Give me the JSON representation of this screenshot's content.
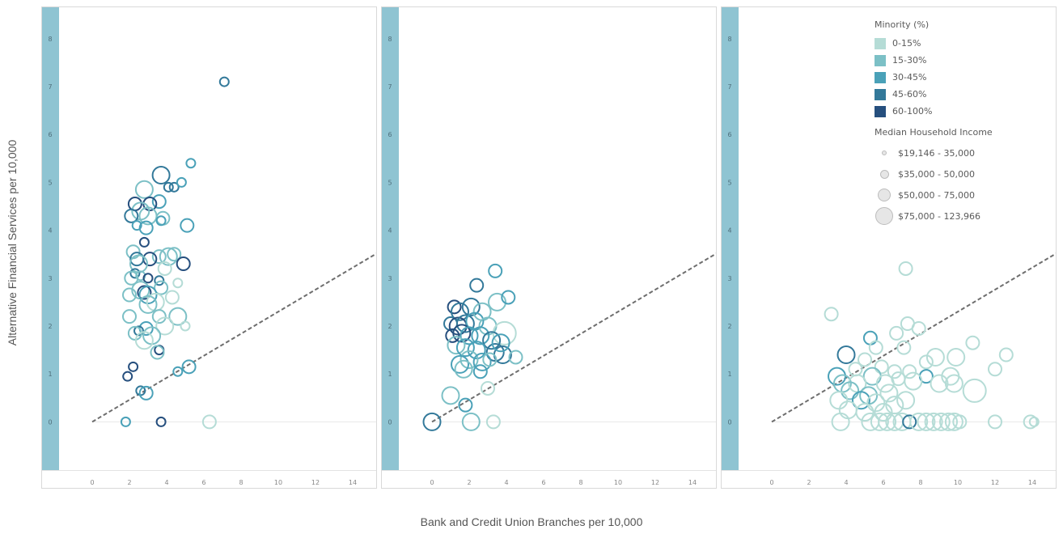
{
  "y_axis_title": "Alternative Financial Services per 10,000",
  "x_axis_title": "Bank and Credit Union Branches per 10,000",
  "colors": {
    "0-15%": "#b5dcd6",
    "15-30%": "#7cc0c6",
    "30-45%": "#4aa1b8",
    "45-60%": "#33799a",
    "60-100%": "#264f7e",
    "yband": "#8fc4d2",
    "refline": "#6e6e6e"
  },
  "legend": {
    "color_title": "Minority (%)",
    "color_items": [
      "0-15%",
      "15-30%",
      "30-45%",
      "45-60%",
      "60-100%"
    ],
    "size_title": "Median Household Income",
    "size_items": [
      "$19,146 - 35,000",
      "$35,000 - 50,000",
      "$50,000 - 75,000",
      "$75,000 - 123,966"
    ]
  },
  "chart_data": [
    {
      "type": "scatter",
      "xlim": [
        -1,
        16
      ],
      "ylim": [
        -0.5,
        9.1
      ],
      "x_ticks": [
        0,
        2,
        4,
        6,
        8,
        10,
        12,
        14,
        16
      ],
      "y_ticks": [
        0,
        1,
        2,
        3,
        4,
        5,
        6,
        7,
        8,
        9
      ],
      "reference_line": "y = 0.23x",
      "points": [
        [
          7.1,
          7.1,
          3,
          1
        ],
        [
          5.3,
          5.4,
          2,
          1
        ],
        [
          3.7,
          5.15,
          3,
          3
        ],
        [
          4.1,
          4.9,
          3,
          1
        ],
        [
          4.4,
          4.9,
          3,
          1
        ],
        [
          4.8,
          5.0,
          2,
          1
        ],
        [
          2.8,
          4.85,
          1,
          3
        ],
        [
          3.6,
          4.6,
          2,
          2
        ],
        [
          2.3,
          4.55,
          4,
          2
        ],
        [
          3.1,
          4.55,
          4,
          2
        ],
        [
          2.6,
          4.4,
          1,
          3
        ],
        [
          2.1,
          4.3,
          3,
          2
        ],
        [
          3.0,
          4.3,
          1,
          3
        ],
        [
          3.8,
          4.25,
          1,
          2
        ],
        [
          3.7,
          4.2,
          2,
          1
        ],
        [
          5.1,
          4.1,
          2,
          2
        ],
        [
          2.4,
          4.1,
          2,
          1
        ],
        [
          2.9,
          4.05,
          2,
          2
        ],
        [
          2.8,
          3.75,
          4,
          1
        ],
        [
          2.2,
          3.55,
          1,
          2
        ],
        [
          3.6,
          3.45,
          1,
          2
        ],
        [
          4.1,
          3.45,
          1,
          3
        ],
        [
          4.4,
          3.5,
          1,
          2
        ],
        [
          3.1,
          3.4,
          4,
          2
        ],
        [
          2.4,
          3.4,
          3,
          2
        ],
        [
          4.9,
          3.3,
          4,
          2
        ],
        [
          2.5,
          3.3,
          1,
          3
        ],
        [
          3.9,
          3.2,
          0,
          2
        ],
        [
          2.3,
          3.1,
          3,
          1
        ],
        [
          2.6,
          3.05,
          1,
          1
        ],
        [
          3.0,
          3.0,
          4,
          1
        ],
        [
          2.1,
          3.0,
          1,
          2
        ],
        [
          3.6,
          2.95,
          3,
          1
        ],
        [
          4.6,
          2.9,
          0,
          1
        ],
        [
          3.7,
          2.8,
          1,
          2
        ],
        [
          2.6,
          2.75,
          1,
          3
        ],
        [
          2.8,
          2.7,
          4,
          2
        ],
        [
          3.0,
          2.65,
          2,
          3
        ],
        [
          2.0,
          2.65,
          1,
          2
        ],
        [
          4.3,
          2.6,
          0,
          2
        ],
        [
          3.4,
          2.5,
          0,
          3
        ],
        [
          3.0,
          2.45,
          1,
          3
        ],
        [
          4.6,
          2.2,
          1,
          3
        ],
        [
          2.0,
          2.2,
          1,
          2
        ],
        [
          3.6,
          2.2,
          1,
          2
        ],
        [
          3.9,
          2.0,
          0,
          3
        ],
        [
          5.0,
          2.0,
          0,
          1
        ],
        [
          2.9,
          1.95,
          2,
          2
        ],
        [
          2.5,
          1.9,
          3,
          1
        ],
        [
          2.3,
          1.85,
          1,
          2
        ],
        [
          3.2,
          1.8,
          1,
          3
        ],
        [
          2.8,
          1.7,
          0,
          3
        ],
        [
          3.6,
          1.5,
          4,
          1
        ],
        [
          3.5,
          1.45,
          1,
          2
        ],
        [
          5.2,
          1.15,
          2,
          2
        ],
        [
          4.6,
          1.05,
          2,
          1
        ],
        [
          2.2,
          1.15,
          4,
          1
        ],
        [
          1.9,
          0.95,
          4,
          1
        ],
        [
          2.6,
          0.65,
          3,
          1
        ],
        [
          2.9,
          0.6,
          2,
          2
        ],
        [
          1.8,
          0.0,
          2,
          1
        ],
        [
          3.7,
          0.0,
          4,
          1
        ],
        [
          6.3,
          0.0,
          0,
          2
        ]
      ]
    },
    {
      "type": "scatter",
      "xlim": [
        -1,
        16
      ],
      "ylim": [
        -0.5,
        9.1
      ],
      "x_ticks": [
        0,
        2,
        4,
        6,
        8,
        10,
        12,
        14,
        16
      ],
      "y_ticks": [
        0,
        1,
        2,
        3,
        4,
        5,
        6,
        7,
        8,
        9
      ],
      "reference_line": "y = 0.23x",
      "points": [
        [
          3.4,
          3.15,
          2,
          2
        ],
        [
          3.5,
          2.5,
          1,
          3
        ],
        [
          4.1,
          2.6,
          2,
          2
        ],
        [
          2.4,
          2.85,
          3,
          2
        ],
        [
          1.2,
          2.4,
          4,
          2
        ],
        [
          1.5,
          2.3,
          3,
          3
        ],
        [
          2.1,
          2.4,
          3,
          3
        ],
        [
          2.7,
          2.3,
          1,
          3
        ],
        [
          1.0,
          2.05,
          3,
          2
        ],
        [
          1.4,
          2.0,
          4,
          3
        ],
        [
          1.8,
          2.05,
          3,
          3
        ],
        [
          2.3,
          2.1,
          2,
          3
        ],
        [
          3.0,
          2.0,
          1,
          3
        ],
        [
          3.9,
          1.85,
          0,
          4
        ],
        [
          1.1,
          1.8,
          4,
          2
        ],
        [
          1.6,
          1.85,
          4,
          3
        ],
        [
          2.0,
          1.8,
          2,
          3
        ],
        [
          2.6,
          1.8,
          2,
          3
        ],
        [
          3.2,
          1.7,
          3,
          3
        ],
        [
          1.3,
          1.6,
          1,
          3
        ],
        [
          1.8,
          1.55,
          2,
          3
        ],
        [
          2.4,
          1.5,
          2,
          3
        ],
        [
          3.4,
          1.45,
          3,
          3
        ],
        [
          3.8,
          1.4,
          3,
          3
        ],
        [
          4.5,
          1.35,
          1,
          2
        ],
        [
          2.0,
          1.3,
          1,
          3
        ],
        [
          2.7,
          1.25,
          2,
          3
        ],
        [
          1.5,
          1.2,
          2,
          3
        ],
        [
          3.1,
          1.3,
          1,
          2
        ],
        [
          3.7,
          1.65,
          2,
          3
        ],
        [
          1.7,
          1.1,
          1,
          3
        ],
        [
          2.6,
          1.05,
          2,
          2
        ],
        [
          1.0,
          0.55,
          1,
          3
        ],
        [
          3.0,
          0.7,
          0,
          2
        ],
        [
          1.8,
          0.35,
          2,
          2
        ],
        [
          0.0,
          0.0,
          3,
          3
        ],
        [
          2.1,
          0.0,
          1,
          3
        ],
        [
          3.3,
          0.0,
          0,
          2
        ]
      ]
    },
    {
      "type": "scatter",
      "xlim": [
        -1,
        16
      ],
      "ylim": [
        -0.5,
        9.1
      ],
      "x_ticks": [
        0,
        2,
        4,
        6,
        8,
        10,
        12,
        14,
        16
      ],
      "y_ticks": [
        0,
        1,
        2,
        3,
        4,
        5,
        6,
        7,
        8,
        9
      ],
      "reference_line": "y = 0.23x",
      "points": [
        [
          7.2,
          3.2,
          0,
          2
        ],
        [
          3.2,
          2.25,
          0,
          2
        ],
        [
          7.3,
          2.05,
          0,
          2
        ],
        [
          7.9,
          1.95,
          0,
          2
        ],
        [
          6.7,
          1.85,
          0,
          2
        ],
        [
          5.3,
          1.75,
          2,
          2
        ],
        [
          10.8,
          1.65,
          0,
          2
        ],
        [
          5.6,
          1.55,
          0,
          2
        ],
        [
          7.1,
          1.55,
          0,
          2
        ],
        [
          12.6,
          1.4,
          0,
          2
        ],
        [
          4.0,
          1.4,
          3,
          3
        ],
        [
          5.0,
          1.3,
          0,
          2
        ],
        [
          8.8,
          1.35,
          0,
          3
        ],
        [
          9.9,
          1.35,
          0,
          3
        ],
        [
          8.3,
          1.25,
          0,
          2
        ],
        [
          5.9,
          1.15,
          0,
          2
        ],
        [
          4.5,
          1.1,
          0,
          2
        ],
        [
          6.6,
          1.05,
          0,
          2
        ],
        [
          7.4,
          1.05,
          0,
          2
        ],
        [
          12.0,
          1.1,
          0,
          2
        ],
        [
          3.5,
          0.95,
          2,
          3
        ],
        [
          5.4,
          0.95,
          1,
          3
        ],
        [
          6.8,
          0.9,
          0,
          2
        ],
        [
          8.3,
          0.95,
          2,
          2
        ],
        [
          9.6,
          0.95,
          0,
          3
        ],
        [
          3.8,
          0.8,
          1,
          3
        ],
        [
          4.6,
          0.8,
          0,
          3
        ],
        [
          6.1,
          0.8,
          0,
          3
        ],
        [
          7.6,
          0.85,
          0,
          3
        ],
        [
          9.0,
          0.8,
          0,
          3
        ],
        [
          9.8,
          0.8,
          0,
          3
        ],
        [
          4.2,
          0.65,
          1,
          3
        ],
        [
          5.2,
          0.55,
          1,
          3
        ],
        [
          6.3,
          0.6,
          0,
          3
        ],
        [
          7.2,
          0.45,
          0,
          3
        ],
        [
          10.9,
          0.65,
          0,
          4
        ],
        [
          3.6,
          0.45,
          0,
          3
        ],
        [
          4.8,
          0.45,
          2,
          3
        ],
        [
          5.6,
          0.4,
          0,
          3
        ],
        [
          6.6,
          0.35,
          0,
          3
        ],
        [
          4.1,
          0.25,
          0,
          3
        ],
        [
          5.0,
          0.2,
          0,
          3
        ],
        [
          6.0,
          0.2,
          0,
          3
        ],
        [
          3.7,
          0.0,
          0,
          3
        ],
        [
          5.3,
          0.0,
          0,
          3
        ],
        [
          5.8,
          0.0,
          0,
          3
        ],
        [
          6.2,
          0.0,
          0,
          3
        ],
        [
          6.6,
          0.0,
          0,
          3
        ],
        [
          7.0,
          0.0,
          0,
          3
        ],
        [
          7.4,
          0.0,
          3,
          2
        ],
        [
          7.9,
          0.0,
          0,
          3
        ],
        [
          8.3,
          0.0,
          0,
          3
        ],
        [
          8.7,
          0.0,
          0,
          3
        ],
        [
          9.1,
          0.0,
          0,
          3
        ],
        [
          9.5,
          0.0,
          0,
          3
        ],
        [
          9.8,
          0.0,
          0,
          3
        ],
        [
          10.1,
          0.0,
          0,
          2
        ],
        [
          12.0,
          0.0,
          0,
          2
        ],
        [
          13.9,
          0.0,
          0,
          2
        ],
        [
          14.1,
          0.0,
          0,
          1
        ]
      ]
    }
  ]
}
